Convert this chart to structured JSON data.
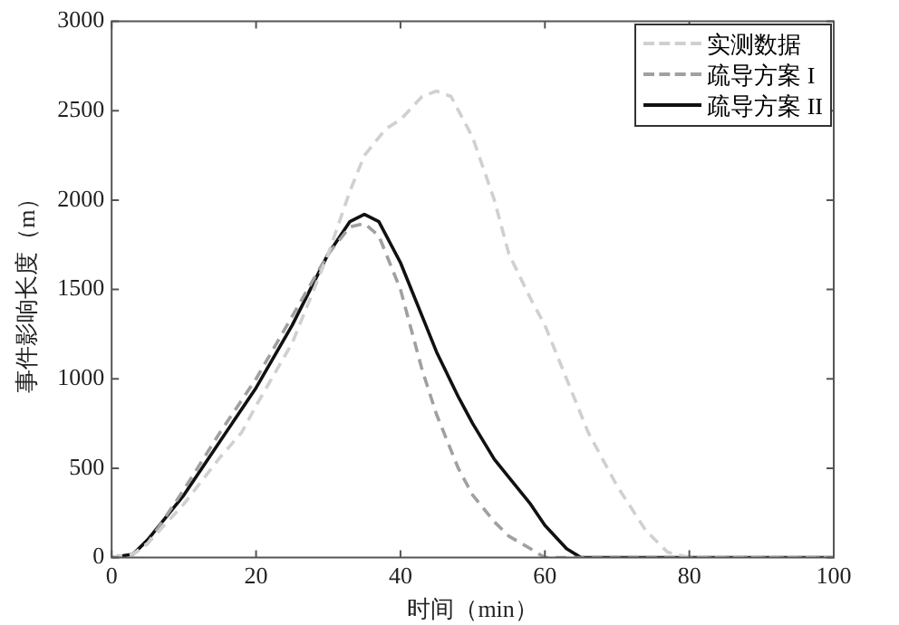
{
  "chart_data": {
    "type": "line",
    "xlabel": "时间（min）",
    "ylabel": "事件影响长度（m）",
    "xlim": [
      0,
      100
    ],
    "ylim": [
      0,
      3000
    ],
    "xticks": [
      0,
      20,
      40,
      60,
      80,
      100
    ],
    "yticks": [
      0,
      500,
      1000,
      1500,
      2000,
      2500,
      3000
    ],
    "grid": false,
    "legend": "top right",
    "series": [
      {
        "name": "实测数据",
        "color": "#d0d0d0",
        "line_style": "dashed",
        "x": [
          0,
          3,
          5,
          10,
          15,
          18,
          20,
          25,
          30,
          33,
          35,
          38,
          40,
          43,
          45,
          47,
          50,
          53,
          55,
          58,
          60,
          63,
          66,
          70,
          74,
          77,
          80,
          85,
          90,
          95,
          100
        ],
        "values": [
          0,
          20,
          80,
          300,
          560,
          700,
          850,
          1200,
          1700,
          2050,
          2250,
          2400,
          2450,
          2580,
          2610,
          2580,
          2350,
          2000,
          1700,
          1450,
          1300,
          1000,
          700,
          400,
          150,
          30,
          0,
          0,
          0,
          0,
          0
        ]
      },
      {
        "name": "疏导方案 I",
        "color": "#a0a0a0",
        "line_style": "dashed",
        "x": [
          0,
          3,
          5,
          10,
          15,
          20,
          25,
          30,
          33,
          35,
          37,
          40,
          43,
          45,
          48,
          50,
          53,
          55,
          58,
          60,
          65,
          70,
          80,
          90,
          100
        ],
        "values": [
          0,
          20,
          80,
          380,
          700,
          1000,
          1350,
          1700,
          1850,
          1870,
          1800,
          1500,
          1050,
          800,
          500,
          350,
          200,
          120,
          50,
          0,
          0,
          0,
          0,
          0,
          0
        ]
      },
      {
        "name": "疏导方案 II",
        "color": "#111111",
        "line_style": "solid",
        "x": [
          0,
          3,
          5,
          10,
          15,
          20,
          25,
          30,
          33,
          35,
          37,
          40,
          43,
          45,
          48,
          50,
          53,
          55,
          58,
          60,
          63,
          65,
          70,
          80,
          90,
          100
        ],
        "values": [
          0,
          20,
          100,
          350,
          650,
          950,
          1300,
          1700,
          1880,
          1920,
          1880,
          1650,
          1350,
          1150,
          900,
          750,
          550,
          450,
          300,
          180,
          50,
          0,
          0,
          0,
          0,
          0
        ]
      }
    ]
  }
}
